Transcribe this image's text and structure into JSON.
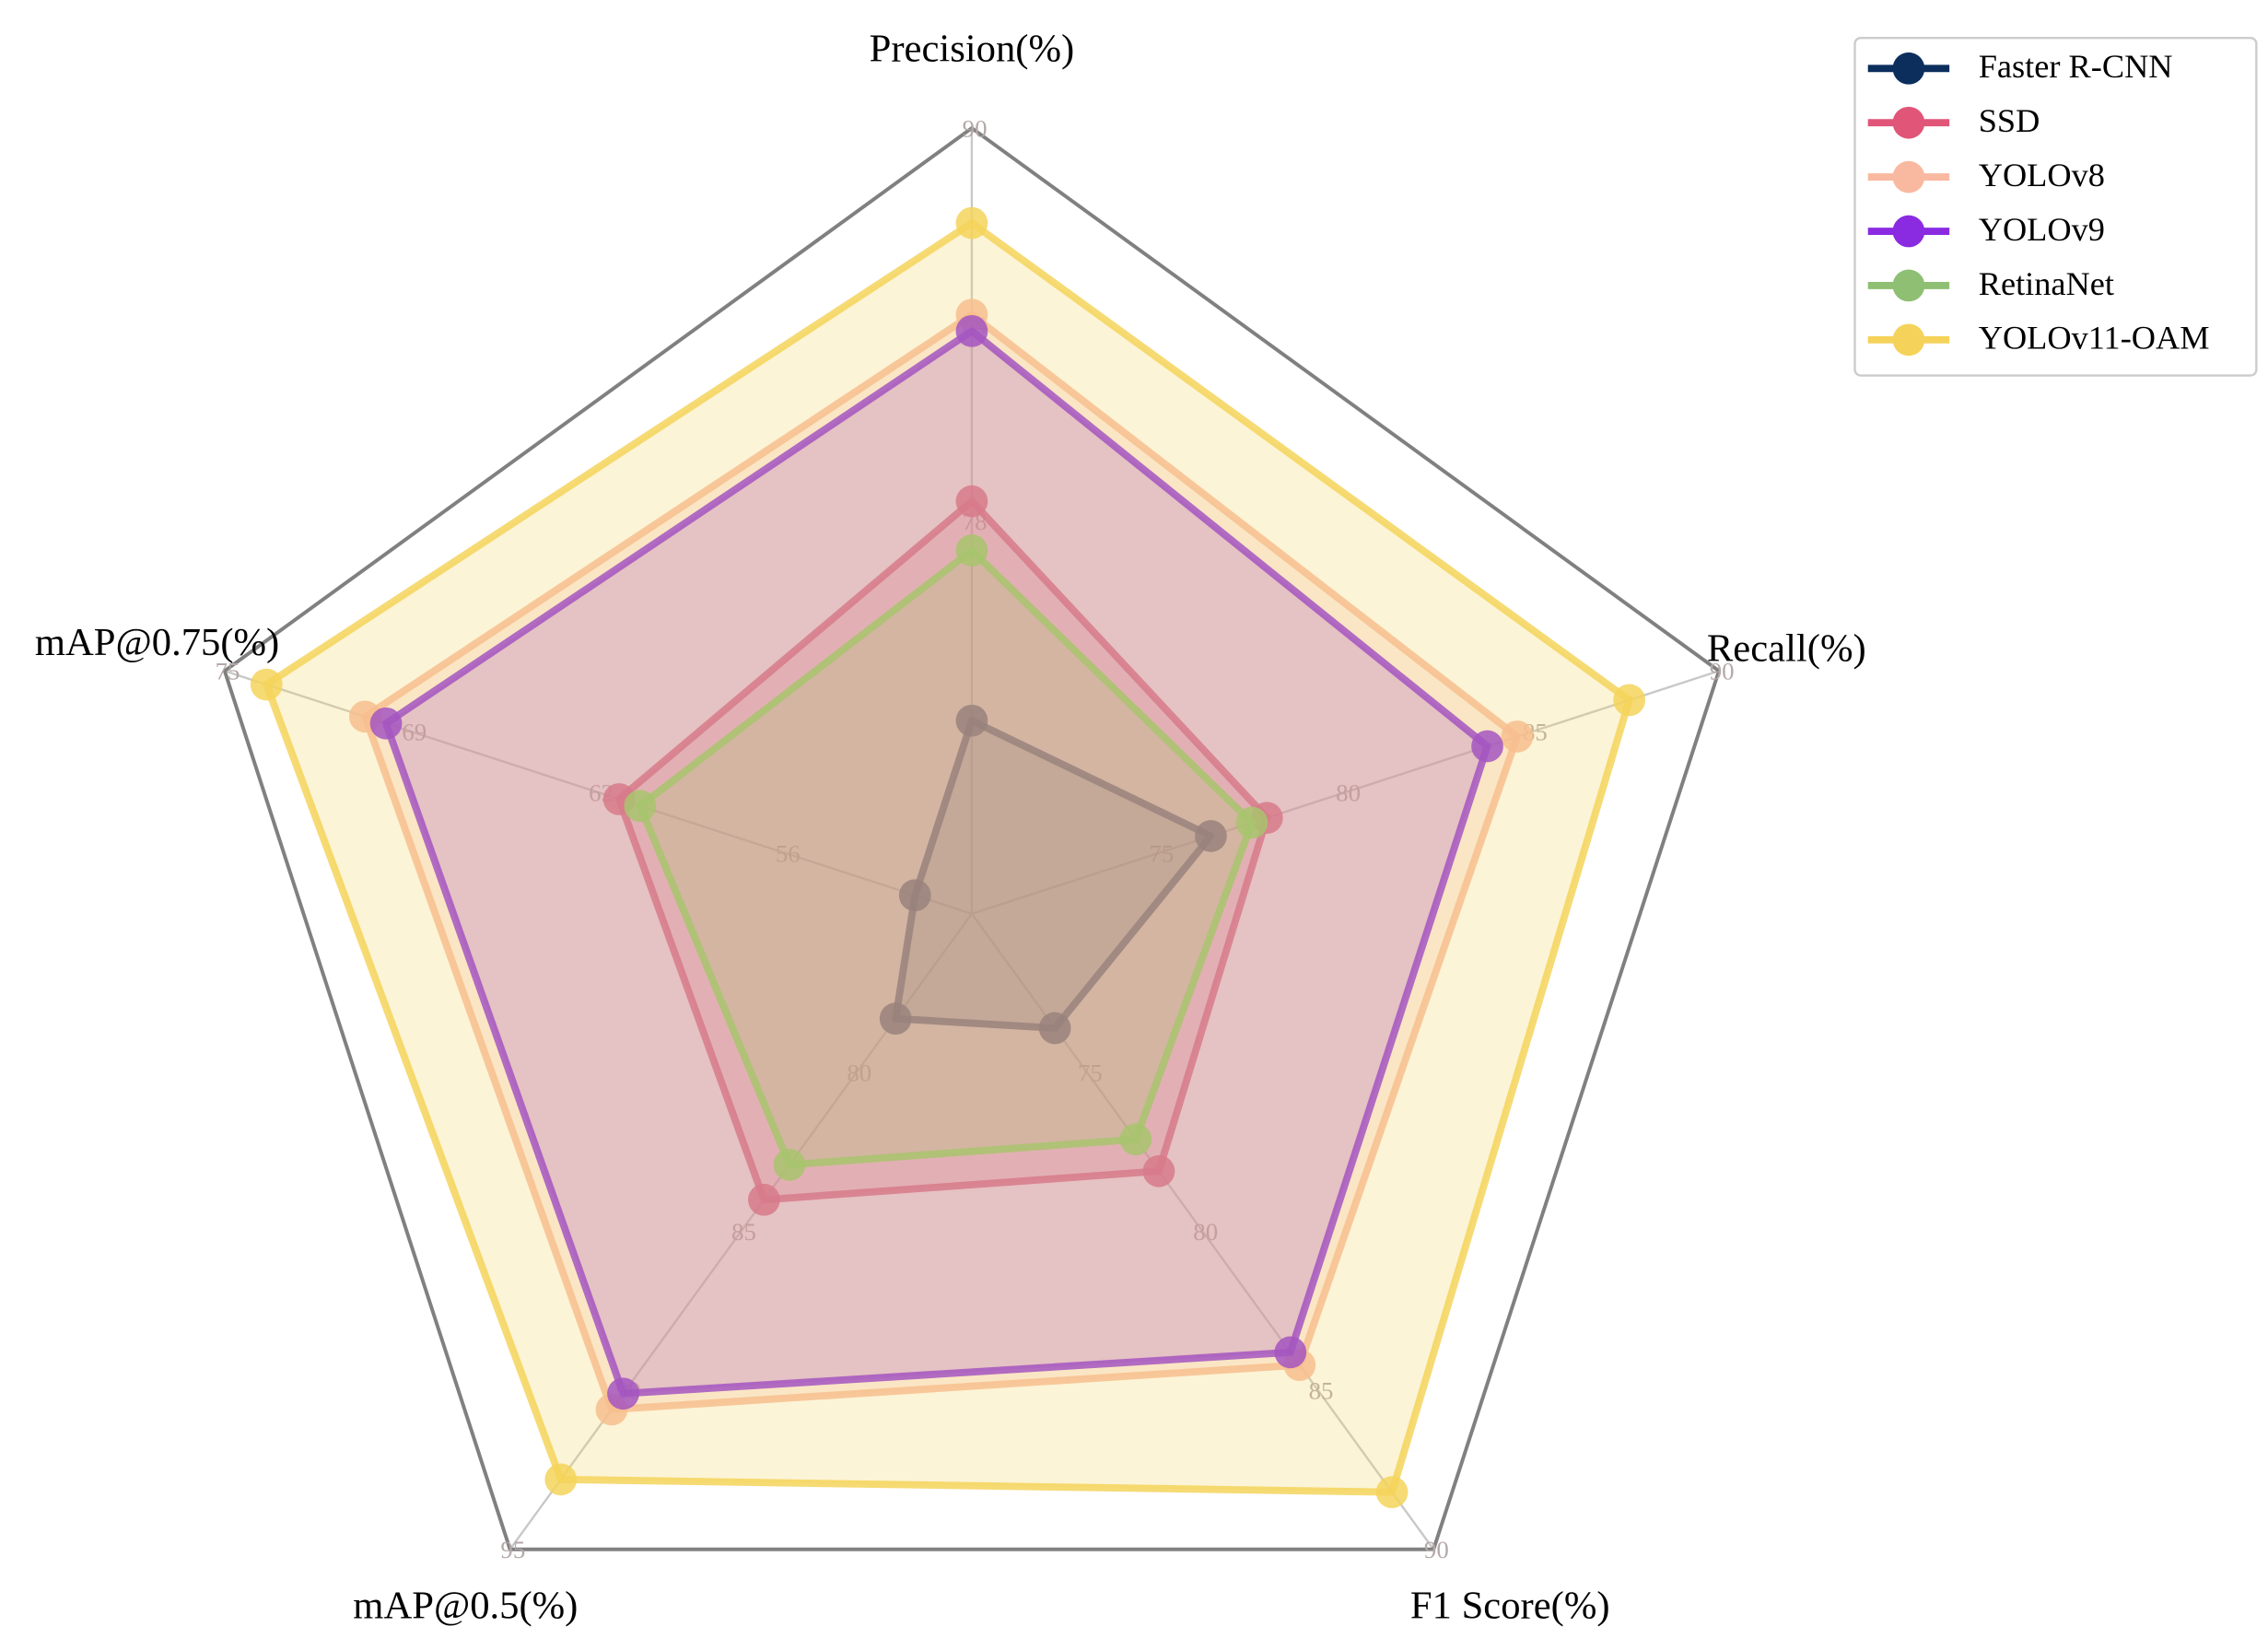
{
  "chart_data": {
    "type": "radar",
    "axes": [
      {
        "label": "Precision(%)",
        "lim": [
          66,
          90
        ],
        "ticks": [
          72,
          78,
          84,
          90
        ]
      },
      {
        "label": "Recall(%)",
        "lim": [
          70,
          90
        ],
        "ticks": [
          75,
          80,
          85,
          90
        ]
      },
      {
        "label": "F1 Score(%)",
        "lim": [
          70,
          90
        ],
        "ticks": [
          75,
          80,
          85,
          90
        ]
      },
      {
        "label": "mAP@0.5(%)",
        "lim": [
          75,
          95
        ],
        "ticks": [
          80,
          85,
          90,
          95
        ]
      },
      {
        "label": "mAP@0.75(%)",
        "lim": [
          50,
          75
        ],
        "ticks": [
          {
            "value": 56.25,
            "label": "56"
          },
          {
            "value": 62.5,
            "label": "62"
          },
          {
            "value": 68.75,
            "label": "69"
          },
          75
        ]
      }
    ],
    "series": [
      {
        "name": "Faster R-CNN",
        "color": "#0b2e5c",
        "values": [
          71.9,
          76.4,
          73.6,
          78.3,
          51.9
        ]
      },
      {
        "name": "SSD",
        "color": "#e05578",
        "values": [
          78.6,
          77.9,
          78.1,
          84.0,
          61.8
        ]
      },
      {
        "name": "YOLOv8",
        "color": "#f9b9a0",
        "values": [
          84.3,
          84.6,
          84.2,
          90.6,
          70.3
        ]
      },
      {
        "name": "YOLOv9",
        "color": "#8a2be2",
        "values": [
          83.8,
          83.8,
          83.8,
          90.1,
          69.6
        ]
      },
      {
        "name": "RetinaNet",
        "color": "#8fbf73",
        "values": [
          77.1,
          77.5,
          77.1,
          82.9,
          61.1
        ]
      },
      {
        "name": "YOLOv11-OAM",
        "color": "#f5d35a",
        "values": [
          87.1,
          87.6,
          88.2,
          92.8,
          73.6
        ]
      }
    ],
    "legend": "upper right"
  }
}
